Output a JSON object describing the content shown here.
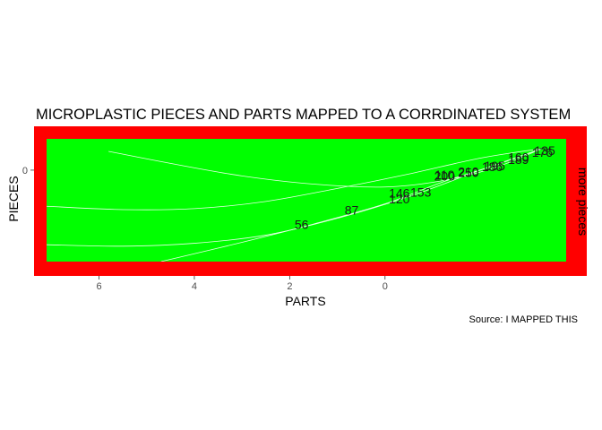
{
  "chart_data": {
    "type": "scatter",
    "title": "MICROPLASTIC PIECES AND PARTS MAPPED TO A CORRDINATED SYSTEM",
    "xlabel": "PARTS",
    "ylabel": "PIECES",
    "secondary_ylabel": "more pieces",
    "caption": "Source: I MAPPED THIS",
    "x_reversed": true,
    "xlim": [
      7.1,
      -3.8
    ],
    "ylim": [
      -190,
      65
    ],
    "x_ticks": [
      6,
      4,
      2,
      0
    ],
    "y_ticks": [
      0
    ],
    "panel_background": "#00ff00",
    "panel_border_color": "#ff0000",
    "grid": false,
    "points": [
      {
        "label": "56",
        "x": 1.75,
        "y": -115
      },
      {
        "label": "87",
        "x": 0.7,
        "y": -85
      },
      {
        "label": "120",
        "x": -0.3,
        "y": -62
      },
      {
        "label": "153",
        "x": -0.75,
        "y": -48
      },
      {
        "label": "146",
        "x": -0.3,
        "y": -50
      },
      {
        "label": "110",
        "x": -1.25,
        "y": -12
      },
      {
        "label": "200",
        "x": -1.25,
        "y": -15
      },
      {
        "label": "210",
        "x": -1.75,
        "y": -5
      },
      {
        "label": "250",
        "x": -1.75,
        "y": -7
      },
      {
        "label": "186",
        "x": -2.25,
        "y": 5
      },
      {
        "label": "195",
        "x": -2.3,
        "y": 7
      },
      {
        "label": "189",
        "x": -2.8,
        "y": 20
      },
      {
        "label": "160",
        "x": -2.8,
        "y": 24
      },
      {
        "label": "176",
        "x": -3.3,
        "y": 35
      },
      {
        "label": "135",
        "x": -3.35,
        "y": 38
      }
    ],
    "curves": [
      {
        "x": [
          5.8,
          4.5,
          3,
          1.5,
          0,
          -1.2,
          -2.3,
          -3.3
        ],
        "y": [
          39,
          14,
          -12,
          -29,
          -35,
          -22,
          5,
          45
        ]
      },
      {
        "x": [
          7.1,
          5.5,
          4,
          2.5,
          1,
          -0.5,
          -2,
          -3.3
        ],
        "y": [
          -75,
          -82,
          -80,
          -65,
          -38,
          -8,
          25,
          45
        ]
      },
      {
        "x": [
          7.1,
          5.5,
          4,
          2.5,
          1,
          -0.5,
          -2,
          -3.3
        ],
        "y": [
          -155,
          -158,
          -152,
          -135,
          -100,
          -55,
          0,
          45
        ]
      },
      {
        "x": [
          4.7,
          3,
          1.5,
          0,
          -1.2,
          -2.3,
          -3.3
        ],
        "y": [
          -190,
          -150,
          -112,
          -70,
          -25,
          10,
          45
        ]
      }
    ]
  }
}
